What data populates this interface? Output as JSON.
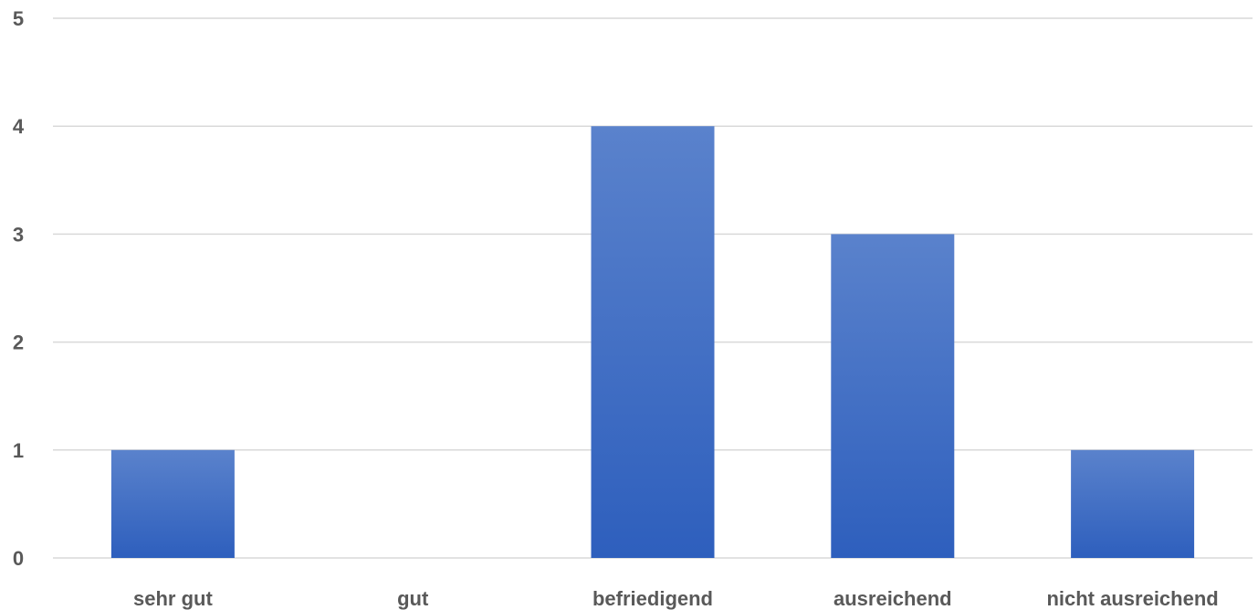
{
  "chart_data": {
    "type": "bar",
    "categories": [
      "sehr gut",
      "gut",
      "befriedigend",
      "ausreichend",
      "nicht ausreichend"
    ],
    "values": [
      1,
      0,
      4,
      3,
      1
    ],
    "ylim": [
      0,
      5
    ],
    "yticks": [
      "0",
      "1",
      "2",
      "3",
      "4",
      "5"
    ],
    "grid": true,
    "legend": "none",
    "colors": {
      "bar_top": "#5a82cc",
      "bar_bottom": "#2e5fbd",
      "grid": "#d9d9d9",
      "text": "#595959"
    }
  }
}
